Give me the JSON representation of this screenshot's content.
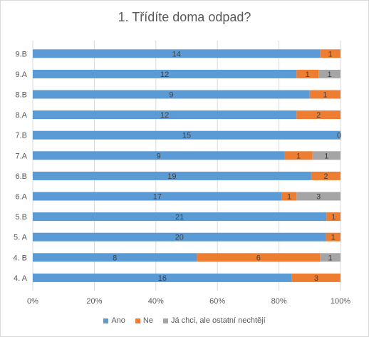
{
  "chart_data": {
    "type": "bar",
    "orientation": "horizontal",
    "stacked": "percent",
    "title": "1. Třídíte doma odpad?",
    "categories": [
      "9.B",
      "9.A",
      "8.B",
      "8.A",
      "7.B",
      "7.A",
      "6.B",
      "6.A",
      "5.B",
      "5. A",
      "4. B",
      "4. A"
    ],
    "series": [
      {
        "name": "Ano",
        "color": "#5B9BD5",
        "values": [
          14,
          12,
          9,
          12,
          15,
          9,
          19,
          17,
          21,
          20,
          8,
          16
        ]
      },
      {
        "name": "Ne",
        "color": "#ED7D31",
        "values": [
          1,
          1,
          1,
          2,
          0,
          1,
          2,
          1,
          1,
          1,
          6,
          3
        ]
      },
      {
        "name": "Já chci, ale ostatní nechtějí",
        "color": "#A5A5A5",
        "values": [
          0,
          1,
          0,
          0,
          0,
          1,
          0,
          3,
          0,
          0,
          1,
          0
        ]
      }
    ],
    "xticks": [
      "0%",
      "20%",
      "40%",
      "60%",
      "80%",
      "100%"
    ],
    "xlim": [
      0,
      100
    ],
    "grid": true,
    "legend_position": "bottom"
  }
}
